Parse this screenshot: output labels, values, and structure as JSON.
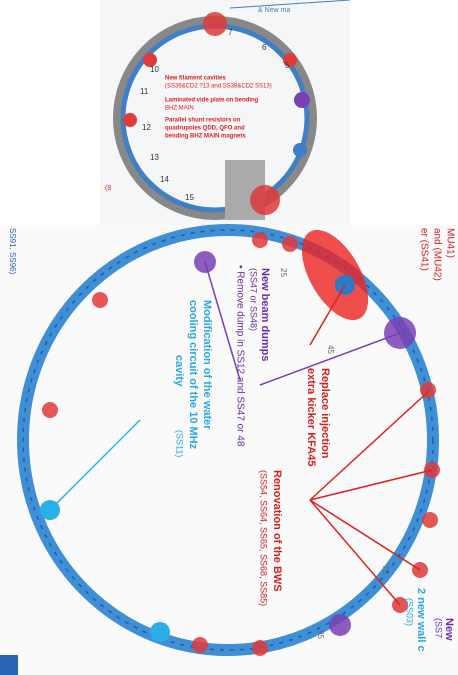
{
  "top_ring": {
    "header": "& New ma",
    "annotations": [
      "New filament cavities",
      "(SS36&CD2 ?13 and SS38&CD2 SS13)",
      "Laminated vide plate on bending",
      "BHZ MAIN",
      "Parallel shunt resistors on",
      "quadrupoles QDD, QFO and",
      "bending BHZ MAIN magnets"
    ],
    "numbers": [
      "7",
      "6",
      "5",
      "10",
      "11",
      "12",
      "13",
      "14",
      "15"
    ],
    "side_label": "(8"
  },
  "bottom_ring": {
    "left_edge": "SS91, SS96)",
    "degrees": [
      "25",
      "45",
      "75",
      "95"
    ],
    "kicker": {
      "lines": [
        "MU41)",
        "and (MU42)",
        "er (SS41)"
      ]
    },
    "beam_dumps": {
      "title": "New beam dumps",
      "detail": "(SS47 or SS48)",
      "bullet": "• Remove dump in SS12 and SS47 or 48"
    },
    "water": {
      "lines": [
        "Modification of the water",
        "cooling circuit of the 10 MHz",
        "cavity"
      ],
      "detail": "(SS11)"
    },
    "injection": {
      "lines": [
        "Replace injection",
        "extra kicker KFA45"
      ]
    },
    "bws": {
      "title": "Renovation of the BWS",
      "detail": "(SS54, SS64, SS65, SS68, SS85)"
    },
    "wall": {
      "title": "2 new wall c",
      "detail": "(SS03)"
    },
    "new": {
      "title": "New",
      "detail": "(SS7"
    }
  }
}
